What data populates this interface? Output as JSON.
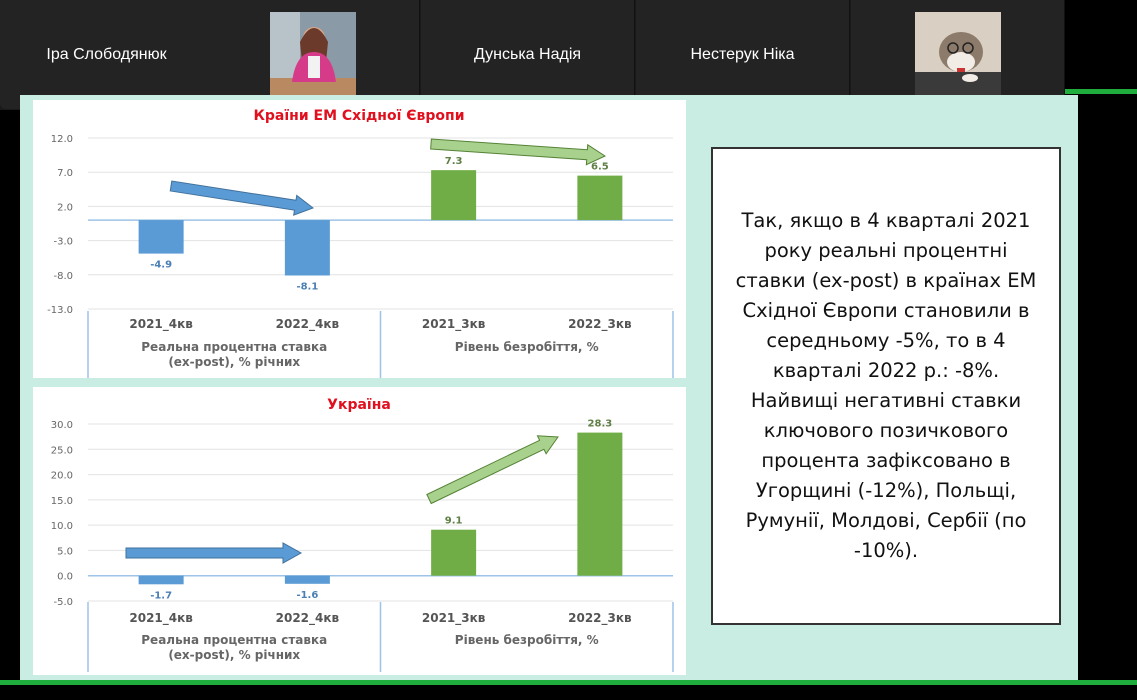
{
  "participants": [
    {
      "name": "Іра Слободянюк",
      "video": false
    },
    {
      "name": "",
      "video": true,
      "avatar": "woman-photo"
    },
    {
      "name": "Дунська Надія",
      "video": false
    },
    {
      "name": "Нестерук Ніка",
      "video": false
    },
    {
      "name": "",
      "video": true,
      "avatar": "cat-photo"
    }
  ],
  "colors": {
    "negative_bar": "#5b9bd5",
    "positive_bar": "#70ad47",
    "title": "#e0101e",
    "zoom_green": "#1fae3d",
    "slide_bg": "#c9ede2"
  },
  "chart_data": [
    {
      "type": "bar",
      "title": "Країни ЕМ Східної Європи",
      "categories": [
        "2021_4кв",
        "2022_4кв",
        "2021_3кв",
        "2022_3кв"
      ],
      "groups": [
        "Реальна процентна ставка (ex-post), % річних",
        "Рівень безробіття, %"
      ],
      "values": [
        -4.9,
        -8.1,
        7.3,
        6.5
      ],
      "labels": [
        "-4.9",
        "-8.1",
        "7.3",
        "6.5"
      ],
      "yticks": [
        "12.0",
        "7.0",
        "2.0",
        "-3.0",
        "-8.0",
        "-13.0"
      ],
      "ylim": [
        -13,
        12
      ],
      "grid": true
    },
    {
      "type": "bar",
      "title": "Україна",
      "categories": [
        "2021_4кв",
        "2022_4кв",
        "2021_3кв",
        "2022_3кв"
      ],
      "groups": [
        "Реальна процентна ставка (ex-post), % річних",
        "Рівень безробіття, %"
      ],
      "values": [
        -1.7,
        -1.6,
        9.1,
        28.3
      ],
      "labels": [
        "-1.7",
        "-1.6",
        "9.1",
        "28.3"
      ],
      "yticks": [
        "30.0",
        "25.0",
        "20.0",
        "15.0",
        "10.0",
        "5.0",
        "0.0",
        "-5.0"
      ],
      "ylim": [
        -5,
        30
      ],
      "grid": true
    }
  ],
  "slide_text": "Так, якщо в 4 кварталі 2021 року реальні процентні ставки (ex-post) в країнах ЕМ Східної Європи становили в середньому -5%, то в 4 кварталі 2022 р.: -8%. Найвищі негативні ставки ключового позичкового процента зафіксовано в Угорщині (-12%), Польщі, Румунії, Молдові, Сербії (по -10%)."
}
